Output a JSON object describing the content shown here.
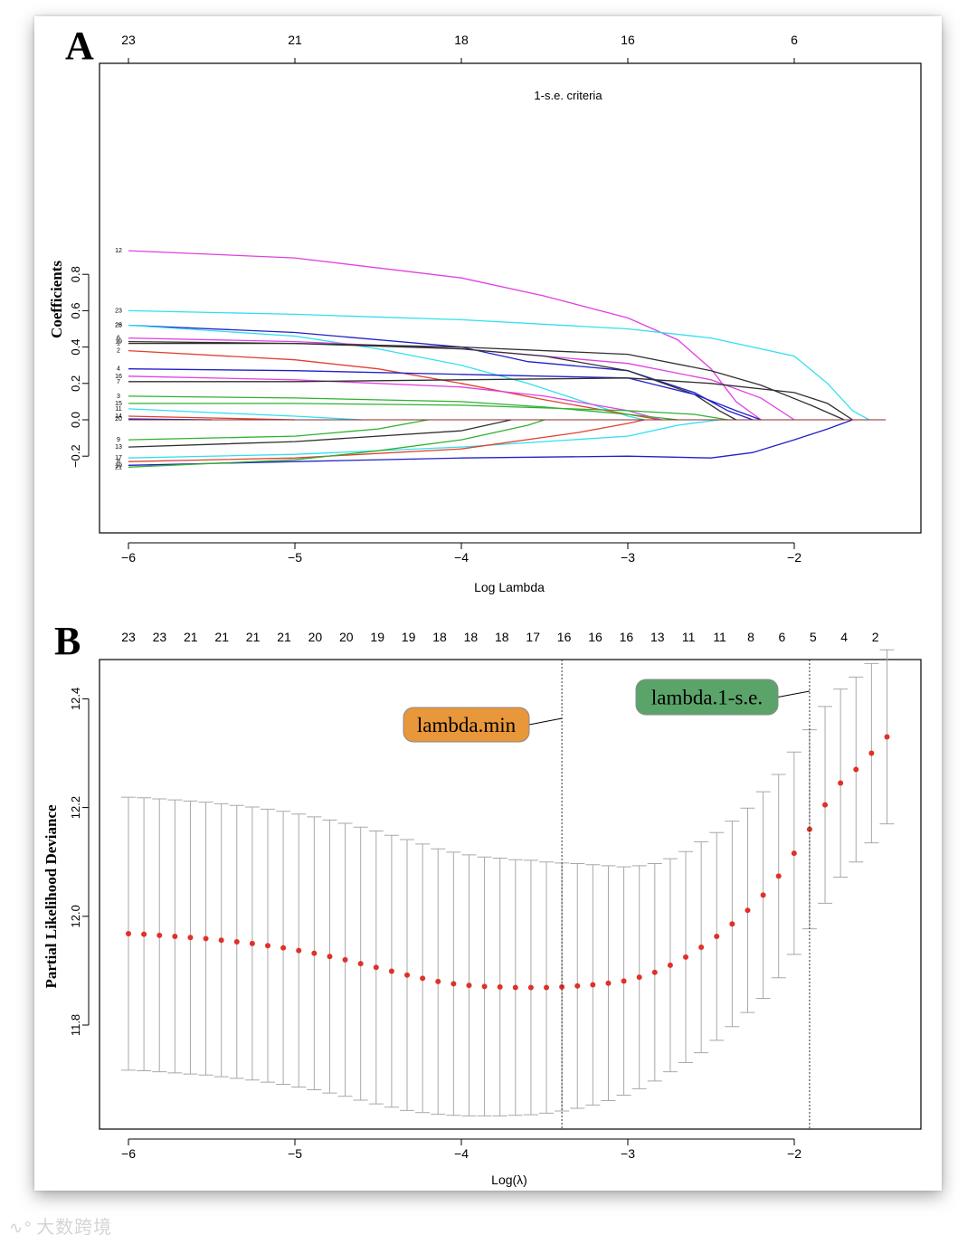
{
  "panels": {
    "a_label": "A",
    "b_label": "B"
  },
  "chart_data": [
    {
      "type": "line",
      "title": "1-s.e. criteria",
      "xlabel": "Log Lambda",
      "ylabel": "Coefficients",
      "xlim": [
        -6.2,
        -1.4
      ],
      "ylim": [
        -0.3,
        0.96
      ],
      "x_ticks": [
        -6,
        -5,
        -4,
        -3,
        -2
      ],
      "x_tick_labels": [
        "−6",
        "−5",
        "−4",
        "−3",
        "−2"
      ],
      "y_ticks": [
        -0.2,
        0.0,
        0.2,
        0.4,
        0.6,
        0.8
      ],
      "y_tick_labels": [
        "−0.2",
        "0.0",
        "0.2",
        "0.4",
        "0.6",
        "0.8"
      ],
      "top_axis": {
        "positions": [
          -6,
          -5,
          -4,
          -3,
          -2
        ],
        "labels": [
          "23",
          "21",
          "18",
          "16",
          "6"
        ]
      },
      "series": [
        {
          "name": "12",
          "color": "#e040e0",
          "points": [
            [
              -6,
              0.93
            ],
            [
              -5,
              0.89
            ],
            [
              -4,
              0.78
            ],
            [
              -3.5,
              0.68
            ],
            [
              -3,
              0.56
            ],
            [
              -2.7,
              0.44
            ],
            [
              -2.5,
              0.28
            ],
            [
              -2.35,
              0.1
            ],
            [
              -2.2,
              0
            ]
          ]
        },
        {
          "name": "23",
          "color": "#30e0f0",
          "points": [
            [
              -6,
              0.6
            ],
            [
              -5,
              0.58
            ],
            [
              -4,
              0.55
            ],
            [
              -3,
              0.5
            ],
            [
              -2.5,
              0.45
            ],
            [
              -2,
              0.35
            ],
            [
              -1.8,
              0.2
            ],
            [
              -1.65,
              0.05
            ],
            [
              -1.55,
              0
            ]
          ]
        },
        {
          "name": "25",
          "color": "#2020c8",
          "points": [
            [
              -6,
              0.52
            ],
            [
              -5,
              0.48
            ],
            [
              -4,
              0.4
            ],
            [
              -3.6,
              0.32
            ],
            [
              -3,
              0.27
            ],
            [
              -2.6,
              0.15
            ],
            [
              -2.4,
              0.05
            ],
            [
              -2.25,
              0
            ]
          ]
        },
        {
          "name": "28",
          "color": "#30e0f0",
          "points": [
            [
              -6,
              0.52
            ],
            [
              -5,
              0.46
            ],
            [
              -4.5,
              0.39
            ],
            [
              -4,
              0.3
            ],
            [
              -3.6,
              0.2
            ],
            [
              -3.2,
              0.08
            ],
            [
              -3,
              0.02
            ],
            [
              -2.9,
              0
            ]
          ]
        },
        {
          "name": "6",
          "color": "#e040e0",
          "points": [
            [
              -6,
              0.45
            ],
            [
              -5,
              0.43
            ],
            [
              -4,
              0.39
            ],
            [
              -3,
              0.31
            ],
            [
              -2.5,
              0.22
            ],
            [
              -2.2,
              0.12
            ],
            [
              -2.05,
              0.03
            ],
            [
              -2,
              0
            ]
          ]
        },
        {
          "name": "19",
          "color": "#303030",
          "points": [
            [
              -6,
              0.43
            ],
            [
              -5,
              0.42
            ],
            [
              -4,
              0.39
            ],
            [
              -3.5,
              0.35
            ],
            [
              -3,
              0.27
            ],
            [
              -2.6,
              0.14
            ],
            [
              -2.45,
              0.05
            ],
            [
              -2.35,
              0
            ]
          ]
        },
        {
          "name": "1",
          "color": "#303030",
          "points": [
            [
              -6,
              0.42
            ],
            [
              -5,
              0.42
            ],
            [
              -4,
              0.4
            ],
            [
              -3,
              0.36
            ],
            [
              -2.5,
              0.27
            ],
            [
              -2.2,
              0.19
            ],
            [
              -1.9,
              0.08
            ],
            [
              -1.7,
              0
            ]
          ]
        },
        {
          "name": "2",
          "color": "#e04030",
          "points": [
            [
              -6,
              0.38
            ],
            [
              -5,
              0.33
            ],
            [
              -4.5,
              0.28
            ],
            [
              -4,
              0.2
            ],
            [
              -3.5,
              0.11
            ],
            [
              -3,
              0.03
            ],
            [
              -2.8,
              0
            ]
          ]
        },
        {
          "name": "4",
          "color": "#2020c8",
          "points": [
            [
              -6,
              0.28
            ],
            [
              -5,
              0.27
            ],
            [
              -4,
              0.25
            ],
            [
              -3,
              0.23
            ],
            [
              -2.6,
              0.14
            ],
            [
              -2.35,
              0.05
            ],
            [
              -2.2,
              0
            ]
          ]
        },
        {
          "name": "16",
          "color": "#e040e0",
          "points": [
            [
              -6,
              0.24
            ],
            [
              -5,
              0.22
            ],
            [
              -4,
              0.18
            ],
            [
              -3.5,
              0.13
            ],
            [
              -3,
              0.05
            ],
            [
              -2.8,
              0
            ]
          ]
        },
        {
          "name": "7",
          "color": "#303030",
          "points": [
            [
              -6,
              0.21
            ],
            [
              -5,
              0.21
            ],
            [
              -4,
              0.22
            ],
            [
              -3,
              0.23
            ],
            [
              -2.5,
              0.2
            ],
            [
              -2,
              0.15
            ],
            [
              -1.8,
              0.09
            ],
            [
              -1.65,
              0
            ]
          ]
        },
        {
          "name": "3",
          "color": "#30b030",
          "points": [
            [
              -6,
              0.13
            ],
            [
              -5,
              0.12
            ],
            [
              -4,
              0.1
            ],
            [
              -3.5,
              0.07
            ],
            [
              -3,
              0.03
            ],
            [
              -2.7,
              0
            ]
          ]
        },
        {
          "name": "15",
          "color": "#30b030",
          "points": [
            [
              -6,
              0.09
            ],
            [
              -5,
              0.09
            ],
            [
              -4,
              0.08
            ],
            [
              -3,
              0.05
            ],
            [
              -2.6,
              0.03
            ],
            [
              -2.4,
              0
            ]
          ]
        },
        {
          "name": "11",
          "color": "#30e0f0",
          "points": [
            [
              -6,
              0.06
            ],
            [
              -5.5,
              0.04
            ],
            [
              -5,
              0.02
            ],
            [
              -4.6,
              0
            ]
          ]
        },
        {
          "name": "14",
          "color": "#e04030",
          "points": [
            [
              -6,
              0.02
            ],
            [
              -5.5,
              0.01
            ],
            [
              -5,
              0
            ]
          ]
        },
        {
          "name": "20",
          "color": "#2020c8",
          "points": [
            [
              -6,
              0.005
            ],
            [
              -5.5,
              0
            ]
          ]
        },
        {
          "name": "9",
          "color": "#30b030",
          "points": [
            [
              -6,
              -0.11
            ],
            [
              -5,
              -0.09
            ],
            [
              -4.5,
              -0.05
            ],
            [
              -4.2,
              0
            ]
          ]
        },
        {
          "name": "13",
          "color": "#303030",
          "points": [
            [
              -6,
              -0.15
            ],
            [
              -5,
              -0.12
            ],
            [
              -4,
              -0.06
            ],
            [
              -3.7,
              0
            ]
          ]
        },
        {
          "name": "17",
          "color": "#30e0f0",
          "points": [
            [
              -6,
              -0.21
            ],
            [
              -5,
              -0.19
            ],
            [
              -4,
              -0.15
            ],
            [
              -3,
              -0.09
            ],
            [
              -2.7,
              -0.03
            ],
            [
              -2.45,
              0
            ]
          ]
        },
        {
          "name": "8",
          "color": "#e04030",
          "points": [
            [
              -6,
              -0.23
            ],
            [
              -5,
              -0.21
            ],
            [
              -4,
              -0.16
            ],
            [
              -3.3,
              -0.07
            ],
            [
              -3,
              -0.02
            ],
            [
              -2.9,
              0
            ]
          ]
        },
        {
          "name": "10",
          "color": "#2020c8",
          "points": [
            [
              -6,
              -0.25
            ],
            [
              -5,
              -0.23
            ],
            [
              -4,
              -0.21
            ],
            [
              -3,
              -0.2
            ],
            [
              -2.5,
              -0.21
            ],
            [
              -2.25,
              -0.18
            ],
            [
              -2,
              -0.11
            ],
            [
              -1.8,
              -0.05
            ],
            [
              -1.65,
              0
            ]
          ]
        },
        {
          "name": "21",
          "color": "#30b030",
          "points": [
            [
              -6,
              -0.26
            ],
            [
              -5,
              -0.22
            ],
            [
              -4.5,
              -0.17
            ],
            [
              -4,
              -0.11
            ],
            [
              -3.6,
              -0.03
            ],
            [
              -3.5,
              0
            ]
          ]
        }
      ],
      "label_order": [
        "12",
        "23",
        "25",
        "28",
        "6",
        "19",
        "1",
        "2",
        "4",
        "16",
        "7",
        "3",
        "15",
        "11",
        "14",
        "20",
        "9",
        "13",
        "17",
        "8",
        "10",
        "21"
      ]
    },
    {
      "type": "scatter",
      "title": "",
      "xlabel": "Log(λ)",
      "ylabel": "Partial Likelihood Deviance",
      "xlim": [
        -6.2,
        -1.4
      ],
      "ylim": [
        11.61,
        12.49
      ],
      "x_ticks": [
        -6,
        -5,
        -4,
        -3,
        -2
      ],
      "x_tick_labels": [
        "−6",
        "−5",
        "−4",
        "−3",
        "−2"
      ],
      "y_ticks": [
        11.8,
        12.0,
        12.2,
        12.4
      ],
      "y_tick_labels": [
        "11.8",
        "12.0",
        "12.2",
        "12.4"
      ],
      "top_axis": {
        "labels": [
          "23",
          "23",
          "21",
          "21",
          "21",
          "21",
          "20",
          "20",
          "19",
          "19",
          "18",
          "18",
          "18",
          "17",
          "16",
          "16",
          "16",
          "13",
          "11",
          "11",
          "8",
          "6",
          "5",
          "4",
          "2"
        ]
      },
      "log_lambda": [
        -6.0,
        -5.907,
        -5.814,
        -5.721,
        -5.628,
        -5.535,
        -5.442,
        -5.349,
        -5.256,
        -5.163,
        -5.07,
        -4.977,
        -4.884,
        -4.791,
        -4.698,
        -4.605,
        -4.512,
        -4.419,
        -4.326,
        -4.233,
        -4.14,
        -4.047,
        -3.954,
        -3.861,
        -3.768,
        -3.675,
        -3.582,
        -3.489,
        -3.396,
        -3.303,
        -3.21,
        -3.117,
        -3.024,
        -2.931,
        -2.838,
        -2.745,
        -2.652,
        -2.559,
        -2.466,
        -2.373,
        -2.28,
        -2.187,
        -2.094,
        -2.001,
        -1.908,
        -1.815,
        -1.722,
        -1.629,
        -1.536,
        -1.443
      ],
      "deviance": [
        11.968,
        11.967,
        11.965,
        11.963,
        11.961,
        11.959,
        11.956,
        11.953,
        11.95,
        11.946,
        11.942,
        11.937,
        11.932,
        11.926,
        11.92,
        11.913,
        11.906,
        11.899,
        11.892,
        11.886,
        11.88,
        11.876,
        11.873,
        11.871,
        11.87,
        11.869,
        11.869,
        11.869,
        11.87,
        11.872,
        11.874,
        11.877,
        11.881,
        11.888,
        11.897,
        11.91,
        11.925,
        11.943,
        11.963,
        11.986,
        12.011,
        12.039,
        12.074,
        12.116,
        12.16,
        12.205,
        12.245,
        12.27,
        12.3,
        12.33
      ],
      "lower": [
        11.717,
        11.716,
        11.714,
        11.712,
        11.71,
        11.708,
        11.705,
        11.702,
        11.699,
        11.695,
        11.691,
        11.686,
        11.681,
        11.675,
        11.669,
        11.662,
        11.655,
        11.649,
        11.643,
        11.639,
        11.636,
        11.634,
        11.633,
        11.633,
        11.633,
        11.634,
        11.635,
        11.638,
        11.642,
        11.647,
        11.653,
        11.661,
        11.671,
        11.683,
        11.697,
        11.714,
        11.731,
        11.749,
        11.772,
        11.797,
        11.823,
        11.849,
        11.887,
        11.93,
        11.977,
        12.024,
        12.072,
        12.1,
        12.135,
        12.17
      ],
      "upper": [
        12.219,
        12.218,
        12.216,
        12.214,
        12.212,
        12.21,
        12.207,
        12.204,
        12.201,
        12.197,
        12.193,
        12.188,
        12.183,
        12.177,
        12.171,
        12.164,
        12.157,
        12.149,
        12.141,
        12.133,
        12.124,
        12.118,
        12.113,
        12.109,
        12.107,
        12.104,
        12.103,
        12.1,
        12.098,
        12.097,
        12.095,
        12.093,
        12.091,
        12.093,
        12.097,
        12.106,
        12.119,
        12.137,
        12.154,
        12.175,
        12.199,
        12.229,
        12.261,
        12.302,
        12.343,
        12.386,
        12.418,
        12.44,
        12.465,
        12.49
      ],
      "vlines": [
        -3.396,
        -1.908
      ],
      "annotations": [
        {
          "label": "lambda.min",
          "x": -3.396,
          "color": "#e8973a"
        },
        {
          "label": "lambda.1-s.e.",
          "x": -1.908,
          "color": "#5aa46a"
        }
      ]
    }
  ],
  "watermark": "大数跨境"
}
